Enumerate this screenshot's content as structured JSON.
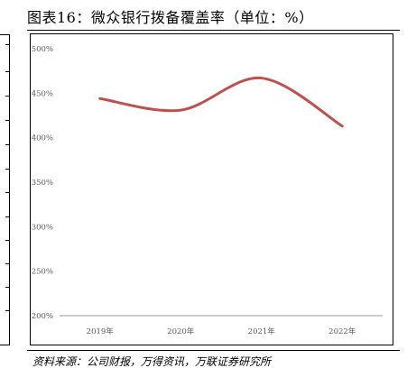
{
  "title": "图表16：微众银行拨备覆盖率（单位：%）",
  "source": "资料来源：公司财报，万得资讯，万联证券研究所",
  "chart_data": {
    "type": "line",
    "categories": [
      "2019年",
      "2020年",
      "2021年",
      "2022年"
    ],
    "series": [
      {
        "values": [
          444,
          431,
          467,
          413
        ],
        "color": "#c0504d"
      }
    ],
    "ylim": [
      200,
      500
    ],
    "yticks": [
      200,
      250,
      300,
      350,
      400,
      450,
      500
    ],
    "ytick_labels": [
      "200%",
      "250%",
      "300%",
      "350%",
      "400%",
      "450%",
      "500%"
    ],
    "grid": false,
    "smooth": true
  }
}
